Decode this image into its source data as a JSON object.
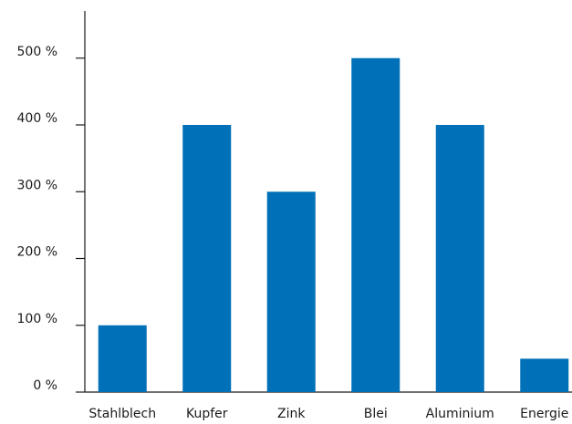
{
  "chart_data": {
    "type": "bar",
    "title": "",
    "xlabel": "",
    "ylabel": "",
    "categories": [
      "Stahlblech",
      "Kupfer",
      "Zink",
      "Blei",
      "Aluminium",
      "Energie"
    ],
    "values": [
      100,
      400,
      300,
      500,
      400,
      50
    ],
    "value_unit": "%",
    "ylim": [
      0,
      550
    ],
    "yticks": [
      0,
      100,
      200,
      300,
      400,
      500
    ],
    "ytick_labels": [
      "0 %",
      "100 %",
      "200 %",
      "300 %",
      "400 %",
      "500 %"
    ],
    "grid": false,
    "legend": "none",
    "bar_color": "#0070b8",
    "axis_color": "#1a1a1a"
  }
}
